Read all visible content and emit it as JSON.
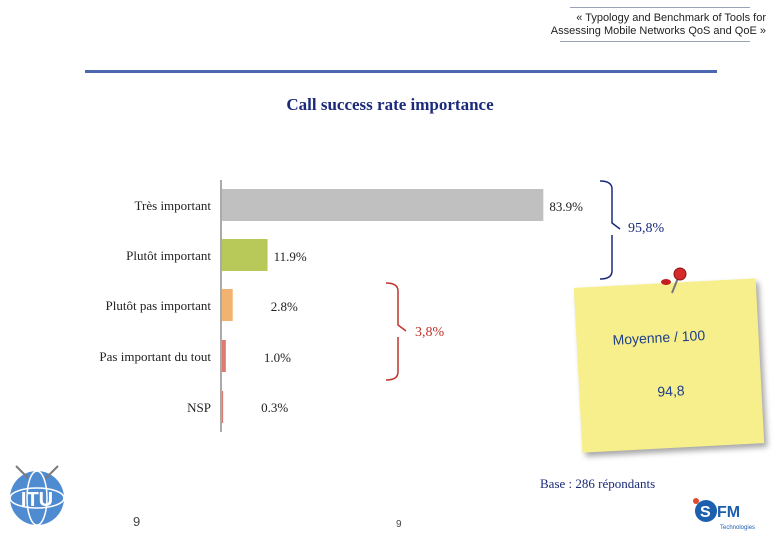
{
  "header": {
    "title_line1": "« Typology and Benchmark of Tools for",
    "title_line2": "Assessing Mobile Networks QoS and QoE »"
  },
  "chart_data": {
    "type": "bar",
    "orientation": "horizontal",
    "title": "Call success rate importance",
    "categories": [
      "Très important",
      "Plutôt important",
      "Plutôt pas important",
      "Pas important du tout",
      "NSP"
    ],
    "values": [
      83.9,
      11.9,
      2.8,
      1.0,
      0.3
    ],
    "value_labels": [
      "83.9%",
      "11.9%",
      "2.8%",
      "1.0%",
      "0.3%"
    ],
    "bar_colors": [
      "#c0c0c0",
      "#b8c95a",
      "#f2b370",
      "#e07a6e",
      "#e07a6e"
    ],
    "xlim": [
      0,
      100
    ],
    "grid": false,
    "legend": "none",
    "annotations": [
      {
        "text": "95,8%",
        "groups": [
          "Très important",
          "Plutôt important"
        ],
        "color": "#1b2a7a"
      },
      {
        "text": "3,8%",
        "groups": [
          "Plutôt pas important",
          "Pas important du tout"
        ],
        "color": "#c0332b"
      }
    ]
  },
  "sticky_note": {
    "line1": "Moyenne / 100",
    "line2": "94,8"
  },
  "footer": {
    "base": "Base : 286 répondants",
    "page_left": "9",
    "page_center": "9",
    "itu_logo_text": "ITU",
    "sfm_logo_text": "SFM",
    "sfm_sub": "Technologies"
  }
}
